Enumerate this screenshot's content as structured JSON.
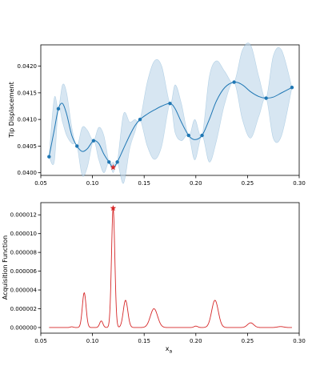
{
  "colors": {
    "line_top": "#1f77b4",
    "band_top": "#bcd6ea",
    "best_marker": "#d62728",
    "line_bottom": "#d62728",
    "axis": "#000000"
  },
  "chart_data": [
    {
      "type": "line",
      "ylabel": "Tip Displacement",
      "xlabel": "",
      "xlim": [
        0.05,
        0.3
      ],
      "ylim": [
        0.03995,
        0.0424
      ],
      "xticks": [
        0.05,
        0.1,
        0.15,
        0.2,
        0.25,
        0.3
      ],
      "xtick_labels": [
        "0.05",
        "0.10",
        "0.15",
        "0.20",
        "0.25",
        "0.30"
      ],
      "yticks": [
        0.04,
        0.0405,
        0.041,
        0.0415,
        0.042
      ],
      "ytick_labels": [
        "0.0400",
        "0.0405",
        "0.0410",
        "0.0415",
        "0.0420"
      ],
      "grid": false,
      "observations": {
        "x": [
          0.058,
          0.067,
          0.085,
          0.101,
          0.116,
          0.124,
          0.146,
          0.175,
          0.193,
          0.206,
          0.237,
          0.268,
          0.293
        ],
        "y": [
          0.0403,
          0.0412,
          0.0405,
          0.0406,
          0.0402,
          0.0402,
          0.041,
          0.0413,
          0.0407,
          0.0407,
          0.0417,
          0.0414,
          0.0416
        ]
      },
      "mean": {
        "x": [
          0.058,
          0.063,
          0.067,
          0.071,
          0.075,
          0.08,
          0.085,
          0.09,
          0.095,
          0.101,
          0.106,
          0.111,
          0.116,
          0.12,
          0.124,
          0.13,
          0.136,
          0.141,
          0.146,
          0.153,
          0.16,
          0.167,
          0.175,
          0.18,
          0.186,
          0.193,
          0.199,
          0.206,
          0.213,
          0.22,
          0.228,
          0.237,
          0.245,
          0.253,
          0.261,
          0.268,
          0.275,
          0.283,
          0.293
        ],
        "y": [
          0.0403,
          0.0408,
          0.0412,
          0.0413,
          0.0411,
          0.0407,
          0.0405,
          0.0404,
          0.04045,
          0.0406,
          0.04055,
          0.04035,
          0.0402,
          0.0401,
          0.0402,
          0.04045,
          0.0407,
          0.04088,
          0.041,
          0.0411,
          0.04118,
          0.04125,
          0.0413,
          0.0412,
          0.04095,
          0.0407,
          0.04062,
          0.0407,
          0.041,
          0.04135,
          0.0416,
          0.0417,
          0.04165,
          0.04152,
          0.04143,
          0.0414,
          0.04142,
          0.0415,
          0.0416
        ]
      },
      "band_upper": [
        0.0403,
        0.0414,
        0.0412,
        0.04165,
        0.0415,
        0.04085,
        0.0405,
        0.04085,
        0.0408,
        0.0406,
        0.04085,
        0.0407,
        0.0402,
        0.0402,
        0.0402,
        0.0411,
        0.04095,
        0.041,
        0.041,
        0.0417,
        0.0421,
        0.042,
        0.0413,
        0.04165,
        0.0413,
        0.0407,
        0.041,
        0.0407,
        0.0418,
        0.0421,
        0.0419,
        0.0417,
        0.0423,
        0.0424,
        0.0418,
        0.0414,
        0.0422,
        0.0423,
        0.0416
      ],
      "band_lower": [
        0.0403,
        0.0402,
        0.0412,
        0.04095,
        0.0407,
        0.04055,
        0.0405,
        0.03995,
        0.0401,
        0.0406,
        0.04025,
        0.04,
        0.0402,
        0.04,
        0.0402,
        0.0398,
        0.04045,
        0.04076,
        0.041,
        0.0405,
        0.04025,
        0.0405,
        0.0413,
        0.04075,
        0.0406,
        0.0407,
        0.04024,
        0.0407,
        0.0402,
        0.0406,
        0.0413,
        0.0417,
        0.041,
        0.04065,
        0.04106,
        0.0414,
        0.04064,
        0.0407,
        0.0416
      ],
      "best_point": {
        "x": 0.12,
        "y": 0.0401
      }
    },
    {
      "type": "line",
      "ylabel": "Acquisition Function",
      "xlabel_main": "x",
      "xlabel_sub": "a",
      "xlim": [
        0.05,
        0.3
      ],
      "ylim": [
        -6e-07,
        1.33e-05
      ],
      "xticks": [
        0.05,
        0.1,
        0.15,
        0.2,
        0.25,
        0.3
      ],
      "xtick_labels": [
        "0.05",
        "0.10",
        "0.15",
        "0.20",
        "0.25",
        "0.30"
      ],
      "yticks": [
        0.0,
        2e-06,
        4e-06,
        6e-06,
        8e-06,
        1e-05,
        1.2e-05
      ],
      "ytick_labels": [
        "0.000000",
        "0.000002",
        "0.000004",
        "0.000006",
        "0.000008",
        "0.000010",
        "0.000012"
      ],
      "grid": false,
      "peaks": [
        {
          "center": 0.08,
          "height": 8e-08,
          "width": 0.0015
        },
        {
          "center": 0.092,
          "height": 3.7e-06,
          "width": 0.0018
        },
        {
          "center": 0.1085,
          "height": 7e-07,
          "width": 0.0016
        },
        {
          "center": 0.12,
          "height": 1.27e-05,
          "width": 0.0016
        },
        {
          "center": 0.132,
          "height": 2.9e-06,
          "width": 0.0022
        },
        {
          "center": 0.1595,
          "height": 2e-06,
          "width": 0.0035
        },
        {
          "center": 0.2,
          "height": 1.5e-07,
          "width": 0.0018
        },
        {
          "center": 0.2185,
          "height": 2.9e-06,
          "width": 0.0032
        },
        {
          "center": 0.253,
          "height": 5e-07,
          "width": 0.003
        },
        {
          "center": 0.282,
          "height": 1e-07,
          "width": 0.003
        }
      ],
      "x_range": [
        0.058,
        0.293
      ],
      "best_point": {
        "x": 0.12,
        "y": 1.27e-05
      }
    }
  ]
}
